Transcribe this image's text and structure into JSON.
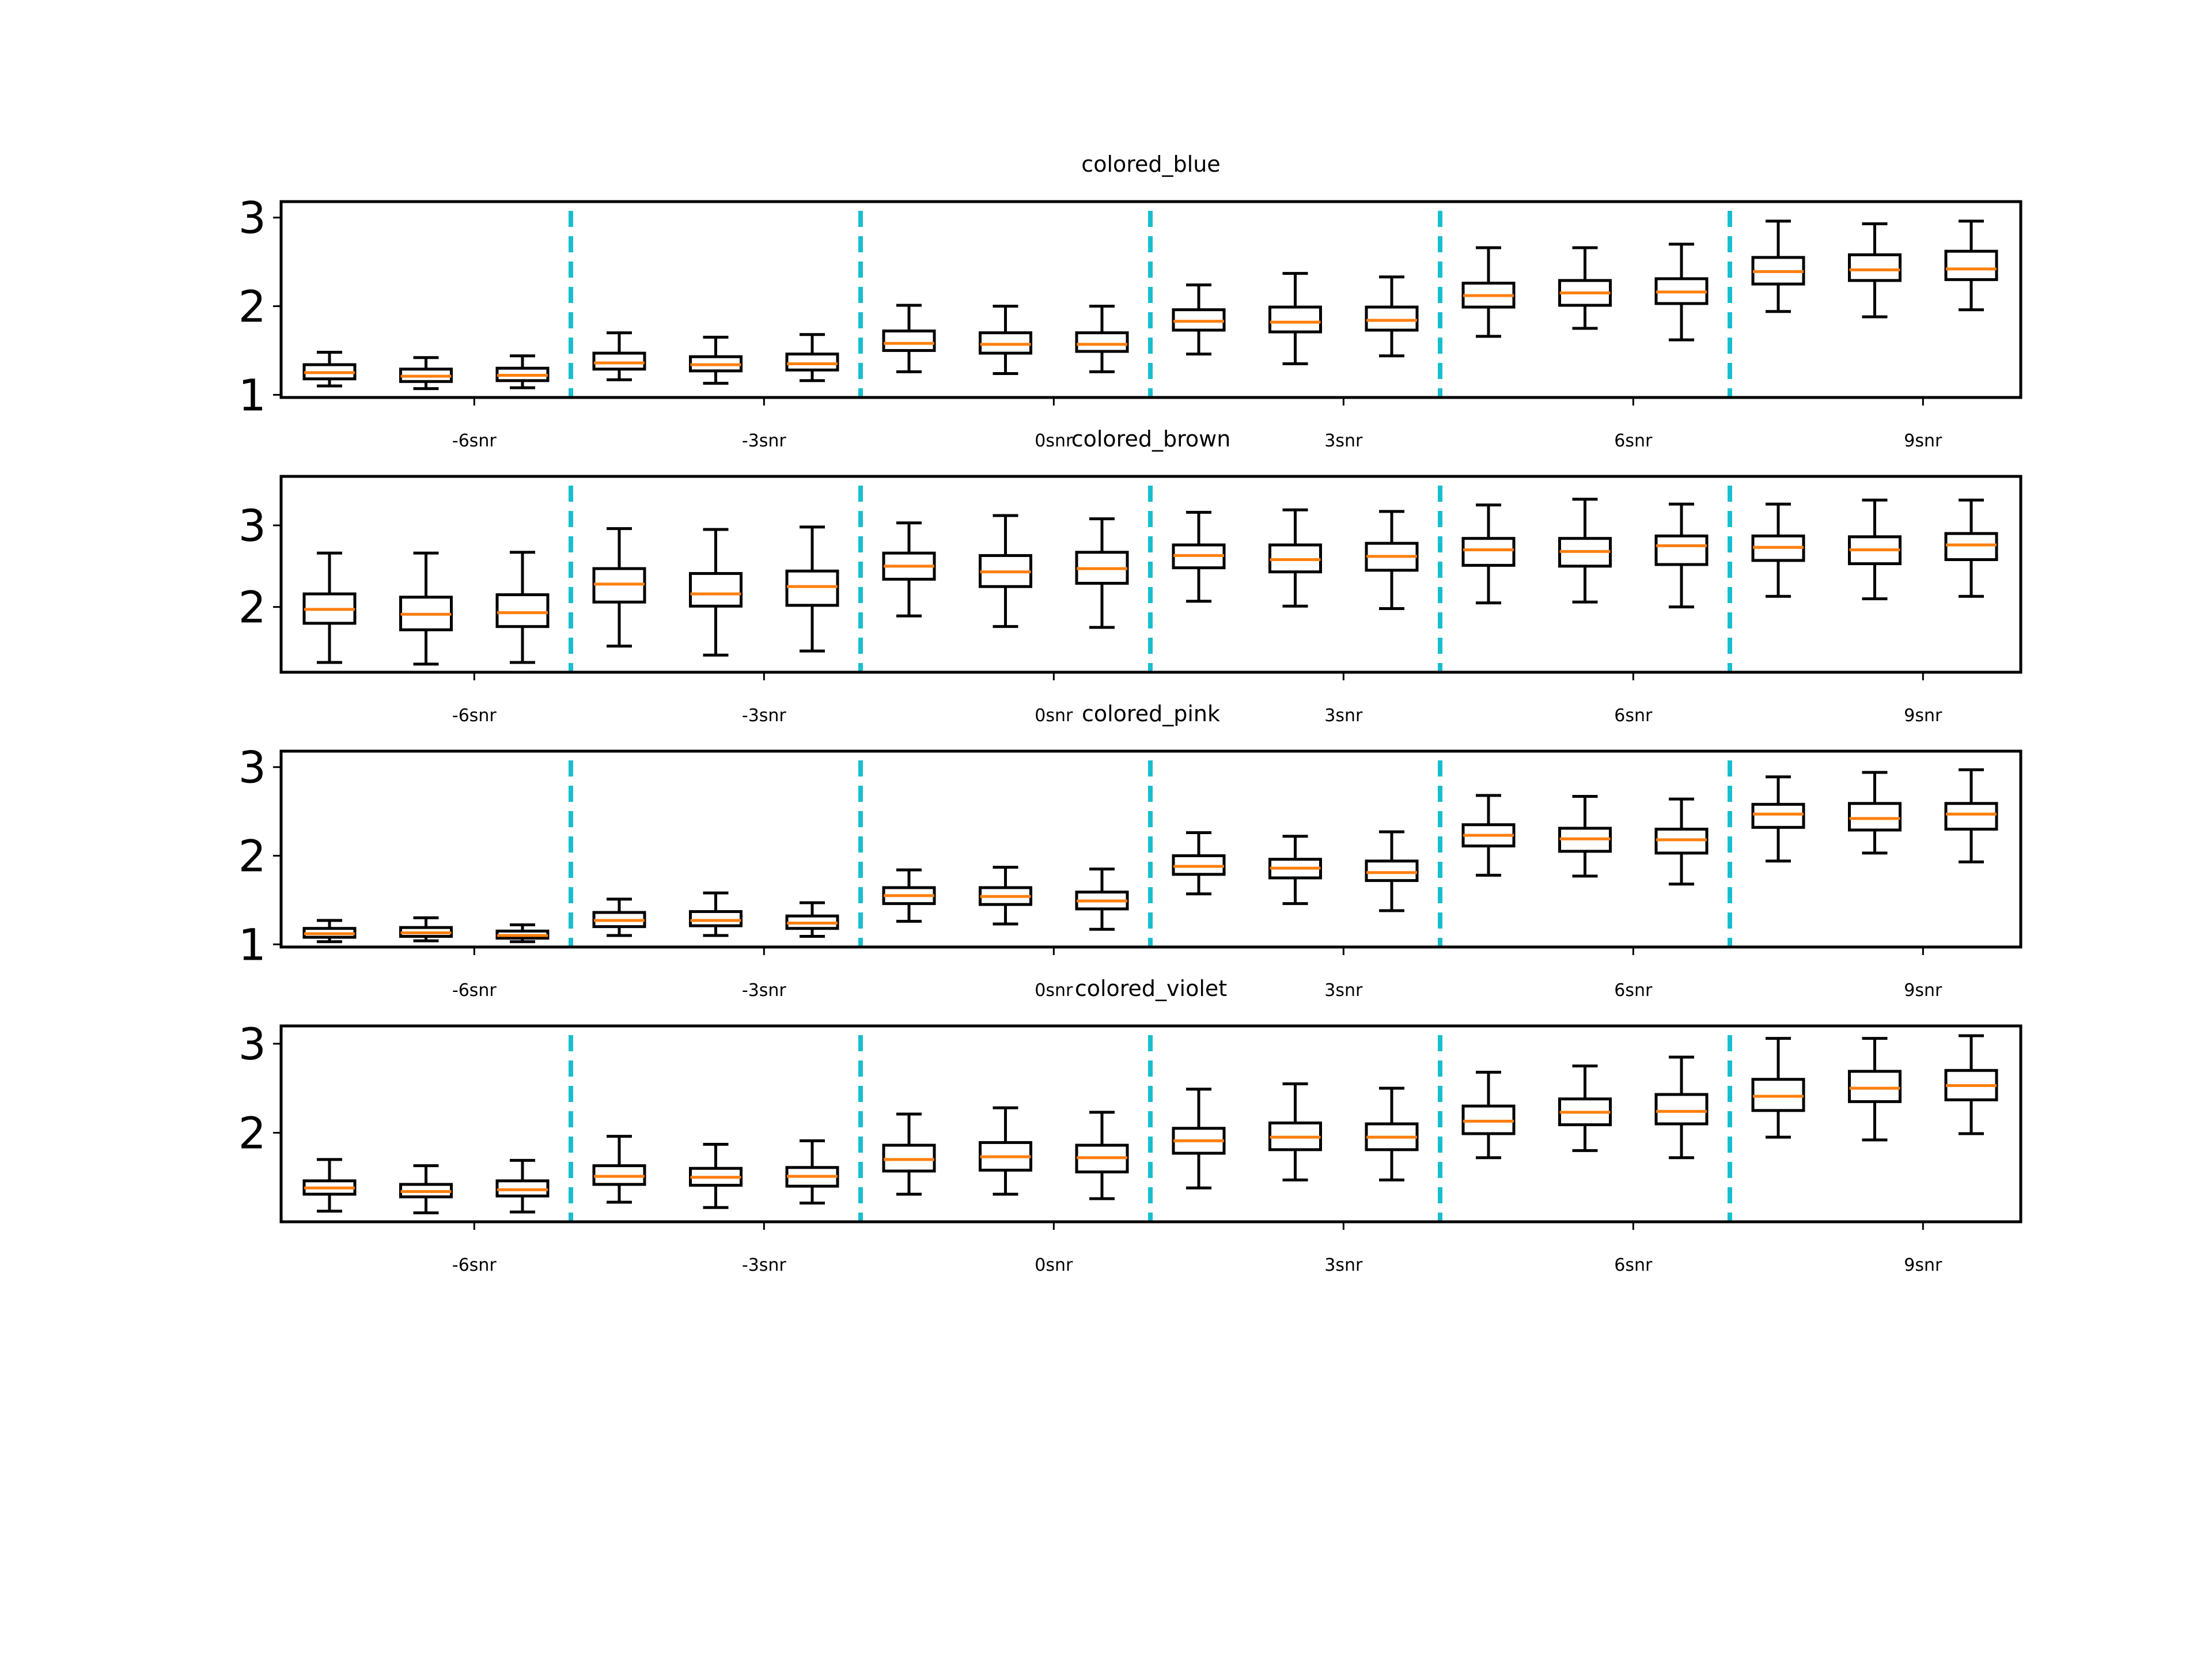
{
  "chart_data": [
    {
      "type": "box",
      "title": "colored_blue",
      "categories": [
        "-6snr",
        "-3snr",
        "0snr",
        "3snr",
        "6snr",
        "9snr"
      ],
      "yticks": [
        1,
        2,
        3
      ],
      "ylim": [
        0.97,
        3.18
      ],
      "colors": {
        "box": "#000000",
        "median": "#ff7f0e",
        "separator": "#17becf"
      },
      "boxes": [
        {
          "group": "-6snr",
          "whislo": 1.1,
          "q1": 1.18,
          "med": 1.25,
          "q3": 1.34,
          "whishi": 1.48
        },
        {
          "group": "-6snr",
          "whislo": 1.07,
          "q1": 1.15,
          "med": 1.21,
          "q3": 1.29,
          "whishi": 1.42
        },
        {
          "group": "-6snr",
          "whislo": 1.08,
          "q1": 1.16,
          "med": 1.22,
          "q3": 1.3,
          "whishi": 1.44
        },
        {
          "group": "-3snr",
          "whislo": 1.17,
          "q1": 1.29,
          "med": 1.36,
          "q3": 1.47,
          "whishi": 1.7
        },
        {
          "group": "-3snr",
          "whislo": 1.13,
          "q1": 1.27,
          "med": 1.34,
          "q3": 1.43,
          "whishi": 1.65
        },
        {
          "group": "-3snr",
          "whislo": 1.16,
          "q1": 1.28,
          "med": 1.35,
          "q3": 1.46,
          "whishi": 1.68
        },
        {
          "group": "0snr",
          "whislo": 1.26,
          "q1": 1.5,
          "med": 1.58,
          "q3": 1.72,
          "whishi": 2.01
        },
        {
          "group": "0snr",
          "whislo": 1.24,
          "q1": 1.47,
          "med": 1.57,
          "q3": 1.7,
          "whishi": 2.0
        },
        {
          "group": "0snr",
          "whislo": 1.26,
          "q1": 1.49,
          "med": 1.57,
          "q3": 1.7,
          "whishi": 2.0
        },
        {
          "group": "3snr",
          "whislo": 1.46,
          "q1": 1.73,
          "med": 1.83,
          "q3": 1.96,
          "whishi": 2.24
        },
        {
          "group": "3snr",
          "whislo": 1.35,
          "q1": 1.71,
          "med": 1.82,
          "q3": 1.99,
          "whishi": 2.37
        },
        {
          "group": "3snr",
          "whislo": 1.44,
          "q1": 1.73,
          "med": 1.84,
          "q3": 1.99,
          "whishi": 2.33
        },
        {
          "group": "6snr",
          "whislo": 1.66,
          "q1": 1.99,
          "med": 2.12,
          "q3": 2.26,
          "whishi": 2.66
        },
        {
          "group": "6snr",
          "whislo": 1.75,
          "q1": 2.01,
          "med": 2.15,
          "q3": 2.29,
          "whishi": 2.66
        },
        {
          "group": "6snr",
          "whislo": 1.62,
          "q1": 2.03,
          "med": 2.16,
          "q3": 2.31,
          "whishi": 2.7
        },
        {
          "group": "9snr",
          "whislo": 1.94,
          "q1": 2.25,
          "med": 2.39,
          "q3": 2.55,
          "whishi": 2.96
        },
        {
          "group": "9snr",
          "whislo": 1.88,
          "q1": 2.29,
          "med": 2.41,
          "q3": 2.58,
          "whishi": 2.93
        },
        {
          "group": "9snr",
          "whislo": 1.96,
          "q1": 2.3,
          "med": 2.42,
          "q3": 2.62,
          "whishi": 2.96
        }
      ]
    },
    {
      "type": "box",
      "title": "colored_brown",
      "categories": [
        "-6snr",
        "-3snr",
        "0snr",
        "3snr",
        "6snr",
        "9snr"
      ],
      "yticks": [
        2,
        3
      ],
      "ylim": [
        1.2,
        3.6
      ],
      "colors": {
        "box": "#000000",
        "median": "#ff7f0e",
        "separator": "#17becf"
      },
      "boxes": [
        {
          "group": "-6snr",
          "whislo": 1.32,
          "q1": 1.8,
          "med": 1.97,
          "q3": 2.16,
          "whishi": 2.66
        },
        {
          "group": "-6snr",
          "whislo": 1.3,
          "q1": 1.72,
          "med": 1.91,
          "q3": 2.12,
          "whishi": 2.66
        },
        {
          "group": "-6snr",
          "whislo": 1.32,
          "q1": 1.76,
          "med": 1.93,
          "q3": 2.15,
          "whishi": 2.67
        },
        {
          "group": "-3snr",
          "whislo": 1.52,
          "q1": 2.06,
          "med": 2.28,
          "q3": 2.47,
          "whishi": 2.96
        },
        {
          "group": "-3snr",
          "whislo": 1.41,
          "q1": 2.01,
          "med": 2.16,
          "q3": 2.41,
          "whishi": 2.95
        },
        {
          "group": "-3snr",
          "whislo": 1.46,
          "q1": 2.02,
          "med": 2.25,
          "q3": 2.44,
          "whishi": 2.98
        },
        {
          "group": "0snr",
          "whislo": 1.89,
          "q1": 2.34,
          "med": 2.5,
          "q3": 2.66,
          "whishi": 3.03
        },
        {
          "group": "0snr",
          "whislo": 1.76,
          "q1": 2.25,
          "med": 2.43,
          "q3": 2.63,
          "whishi": 3.12
        },
        {
          "group": "0snr",
          "whislo": 1.75,
          "q1": 2.29,
          "med": 2.47,
          "q3": 2.67,
          "whishi": 3.08
        },
        {
          "group": "3snr",
          "whislo": 2.07,
          "q1": 2.48,
          "med": 2.63,
          "q3": 2.76,
          "whishi": 3.16
        },
        {
          "group": "3snr",
          "whislo": 2.01,
          "q1": 2.43,
          "med": 2.58,
          "q3": 2.76,
          "whishi": 3.19
        },
        {
          "group": "3snr",
          "whislo": 1.98,
          "q1": 2.45,
          "med": 2.62,
          "q3": 2.78,
          "whishi": 3.17
        },
        {
          "group": "6snr",
          "whislo": 2.05,
          "q1": 2.51,
          "med": 2.7,
          "q3": 2.84,
          "whishi": 3.25
        },
        {
          "group": "6snr",
          "whislo": 2.06,
          "q1": 2.5,
          "med": 2.68,
          "q3": 2.84,
          "whishi": 3.32
        },
        {
          "group": "6snr",
          "whislo": 2.0,
          "q1": 2.52,
          "med": 2.75,
          "q3": 2.87,
          "whishi": 3.26
        },
        {
          "group": "9snr",
          "whislo": 2.13,
          "q1": 2.57,
          "med": 2.73,
          "q3": 2.87,
          "whishi": 3.26
        },
        {
          "group": "9snr",
          "whislo": 2.1,
          "q1": 2.53,
          "med": 2.7,
          "q3": 2.86,
          "whishi": 3.31
        },
        {
          "group": "9snr",
          "whislo": 2.13,
          "q1": 2.58,
          "med": 2.76,
          "q3": 2.9,
          "whishi": 3.31
        }
      ]
    },
    {
      "type": "box",
      "title": "colored_pink",
      "categories": [
        "-6snr",
        "-3snr",
        "0snr",
        "3snr",
        "6snr",
        "9snr"
      ],
      "yticks": [
        1,
        2,
        3
      ],
      "ylim": [
        0.97,
        3.18
      ],
      "colors": {
        "box": "#000000",
        "median": "#ff7f0e",
        "separator": "#17becf"
      },
      "boxes": [
        {
          "group": "-6snr",
          "whislo": 1.03,
          "q1": 1.08,
          "med": 1.12,
          "q3": 1.18,
          "whishi": 1.27
        },
        {
          "group": "-6snr",
          "whislo": 1.04,
          "q1": 1.09,
          "med": 1.13,
          "q3": 1.19,
          "whishi": 1.3
        },
        {
          "group": "-6snr",
          "whislo": 1.03,
          "q1": 1.07,
          "med": 1.1,
          "q3": 1.15,
          "whishi": 1.22
        },
        {
          "group": "-3snr",
          "whislo": 1.1,
          "q1": 1.2,
          "med": 1.27,
          "q3": 1.36,
          "whishi": 1.51
        },
        {
          "group": "-3snr",
          "whislo": 1.1,
          "q1": 1.21,
          "med": 1.27,
          "q3": 1.37,
          "whishi": 1.58
        },
        {
          "group": "-3snr",
          "whislo": 1.09,
          "q1": 1.18,
          "med": 1.24,
          "q3": 1.32,
          "whishi": 1.47
        },
        {
          "group": "0snr",
          "whislo": 1.26,
          "q1": 1.46,
          "med": 1.55,
          "q3": 1.64,
          "whishi": 1.84
        },
        {
          "group": "0snr",
          "whislo": 1.23,
          "q1": 1.45,
          "med": 1.54,
          "q3": 1.64,
          "whishi": 1.87
        },
        {
          "group": "0snr",
          "whislo": 1.17,
          "q1": 1.4,
          "med": 1.49,
          "q3": 1.59,
          "whishi": 1.85
        },
        {
          "group": "3snr",
          "whislo": 1.57,
          "q1": 1.79,
          "med": 1.88,
          "q3": 2.0,
          "whishi": 2.26
        },
        {
          "group": "3snr",
          "whislo": 1.46,
          "q1": 1.75,
          "med": 1.86,
          "q3": 1.96,
          "whishi": 2.22
        },
        {
          "group": "3snr",
          "whislo": 1.38,
          "q1": 1.72,
          "med": 1.81,
          "q3": 1.94,
          "whishi": 2.27
        },
        {
          "group": "6snr",
          "whislo": 1.78,
          "q1": 2.11,
          "med": 2.23,
          "q3": 2.35,
          "whishi": 2.68
        },
        {
          "group": "6snr",
          "whislo": 1.77,
          "q1": 2.05,
          "med": 2.19,
          "q3": 2.31,
          "whishi": 2.67
        },
        {
          "group": "6snr",
          "whislo": 1.68,
          "q1": 2.03,
          "med": 2.18,
          "q3": 2.3,
          "whishi": 2.64
        },
        {
          "group": "9snr",
          "whislo": 1.94,
          "q1": 2.32,
          "med": 2.47,
          "q3": 2.58,
          "whishi": 2.89
        },
        {
          "group": "9snr",
          "whislo": 2.03,
          "q1": 2.29,
          "med": 2.42,
          "q3": 2.59,
          "whishi": 2.94
        },
        {
          "group": "9snr",
          "whislo": 1.93,
          "q1": 2.3,
          "med": 2.47,
          "q3": 2.59,
          "whishi": 2.97
        }
      ]
    },
    {
      "type": "box",
      "title": "colored_violet",
      "categories": [
        "-6snr",
        "-3snr",
        "0snr",
        "3snr",
        "6snr",
        "9snr"
      ],
      "yticks": [
        2,
        3
      ],
      "ylim": [
        1.0,
        3.2
      ],
      "colors": {
        "box": "#000000",
        "median": "#ff7f0e",
        "separator": "#17becf"
      },
      "boxes": [
        {
          "group": "-6snr",
          "whislo": 1.12,
          "q1": 1.31,
          "med": 1.38,
          "q3": 1.46,
          "whishi": 1.7
        },
        {
          "group": "-6snr",
          "whislo": 1.1,
          "q1": 1.28,
          "med": 1.34,
          "q3": 1.42,
          "whishi": 1.63
        },
        {
          "group": "-6snr",
          "whislo": 1.11,
          "q1": 1.29,
          "med": 1.36,
          "q3": 1.46,
          "whishi": 1.69
        },
        {
          "group": "-3snr",
          "whislo": 1.22,
          "q1": 1.42,
          "med": 1.51,
          "q3": 1.63,
          "whishi": 1.96
        },
        {
          "group": "-3snr",
          "whislo": 1.16,
          "q1": 1.41,
          "med": 1.5,
          "q3": 1.6,
          "whishi": 1.87
        },
        {
          "group": "-3snr",
          "whislo": 1.21,
          "q1": 1.4,
          "med": 1.51,
          "q3": 1.61,
          "whishi": 1.91
        },
        {
          "group": "0snr",
          "whislo": 1.31,
          "q1": 1.57,
          "med": 1.7,
          "q3": 1.86,
          "whishi": 2.21
        },
        {
          "group": "0snr",
          "whislo": 1.31,
          "q1": 1.58,
          "med": 1.73,
          "q3": 1.89,
          "whishi": 2.28
        },
        {
          "group": "0snr",
          "whislo": 1.26,
          "q1": 1.56,
          "med": 1.72,
          "q3": 1.86,
          "whishi": 2.23
        },
        {
          "group": "3snr",
          "whislo": 1.38,
          "q1": 1.77,
          "med": 1.91,
          "q3": 2.05,
          "whishi": 2.49
        },
        {
          "group": "3snr",
          "whislo": 1.47,
          "q1": 1.81,
          "med": 1.95,
          "q3": 2.11,
          "whishi": 2.55
        },
        {
          "group": "3snr",
          "whislo": 1.47,
          "q1": 1.81,
          "med": 1.95,
          "q3": 2.1,
          "whishi": 2.5
        },
        {
          "group": "6snr",
          "whislo": 1.72,
          "q1": 1.99,
          "med": 2.13,
          "q3": 2.3,
          "whishi": 2.68
        },
        {
          "group": "6snr",
          "whislo": 1.8,
          "q1": 2.09,
          "med": 2.23,
          "q3": 2.38,
          "whishi": 2.75
        },
        {
          "group": "6snr",
          "whislo": 1.72,
          "q1": 2.1,
          "med": 2.24,
          "q3": 2.43,
          "whishi": 2.85
        },
        {
          "group": "9snr",
          "whislo": 1.95,
          "q1": 2.25,
          "med": 2.41,
          "q3": 2.6,
          "whishi": 3.06
        },
        {
          "group": "9snr",
          "whislo": 1.92,
          "q1": 2.35,
          "med": 2.5,
          "q3": 2.69,
          "whishi": 3.06
        },
        {
          "group": "9snr",
          "whislo": 1.99,
          "q1": 2.37,
          "med": 2.53,
          "q3": 2.7,
          "whishi": 3.09
        }
      ]
    }
  ]
}
